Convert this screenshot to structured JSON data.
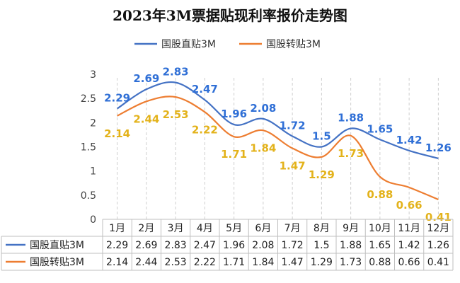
{
  "title": "2023年3M票据贴现利率报价走势图",
  "chart_data": {
    "type": "line",
    "title": "2023年3M票据贴现利率报价走势图",
    "categories": [
      "1月",
      "2月",
      "3月",
      "4月",
      "5月",
      "6月",
      "7月",
      "8月",
      "9月",
      "10月",
      "11月",
      "12月"
    ],
    "series": [
      {
        "name": "国股直贴3M",
        "color": "#4472c4",
        "label_color": "#2f6fd6",
        "values": [
          2.29,
          2.69,
          2.83,
          2.47,
          1.96,
          2.08,
          1.72,
          1.5,
          1.88,
          1.65,
          1.42,
          1.26
        ],
        "labels": [
          "2.29",
          "2.69",
          "2.83",
          "2.47",
          "1.96",
          "2.08",
          "1.72",
          "1.5",
          "1.88",
          "1.65",
          "1.42",
          "1.26"
        ]
      },
      {
        "name": "国股转贴3M",
        "color": "#ed7d31",
        "label_color": "#e3b21a",
        "values": [
          2.14,
          2.44,
          2.53,
          2.22,
          1.71,
          1.84,
          1.47,
          1.29,
          1.73,
          0.88,
          0.66,
          0.41
        ],
        "labels": [
          "2.14",
          "2.44",
          "2.53",
          "2.22",
          "1.71",
          "1.84",
          "1.47",
          "1.29",
          "1.73",
          "0.88",
          "0.66",
          "0.41"
        ]
      }
    ],
    "yticks": [
      "0",
      "0.5",
      "1",
      "1.5",
      "2",
      "2.5",
      "3"
    ],
    "ylim": [
      0,
      3
    ],
    "legend": "top",
    "grid": "vertical dashed",
    "data_table": true
  }
}
